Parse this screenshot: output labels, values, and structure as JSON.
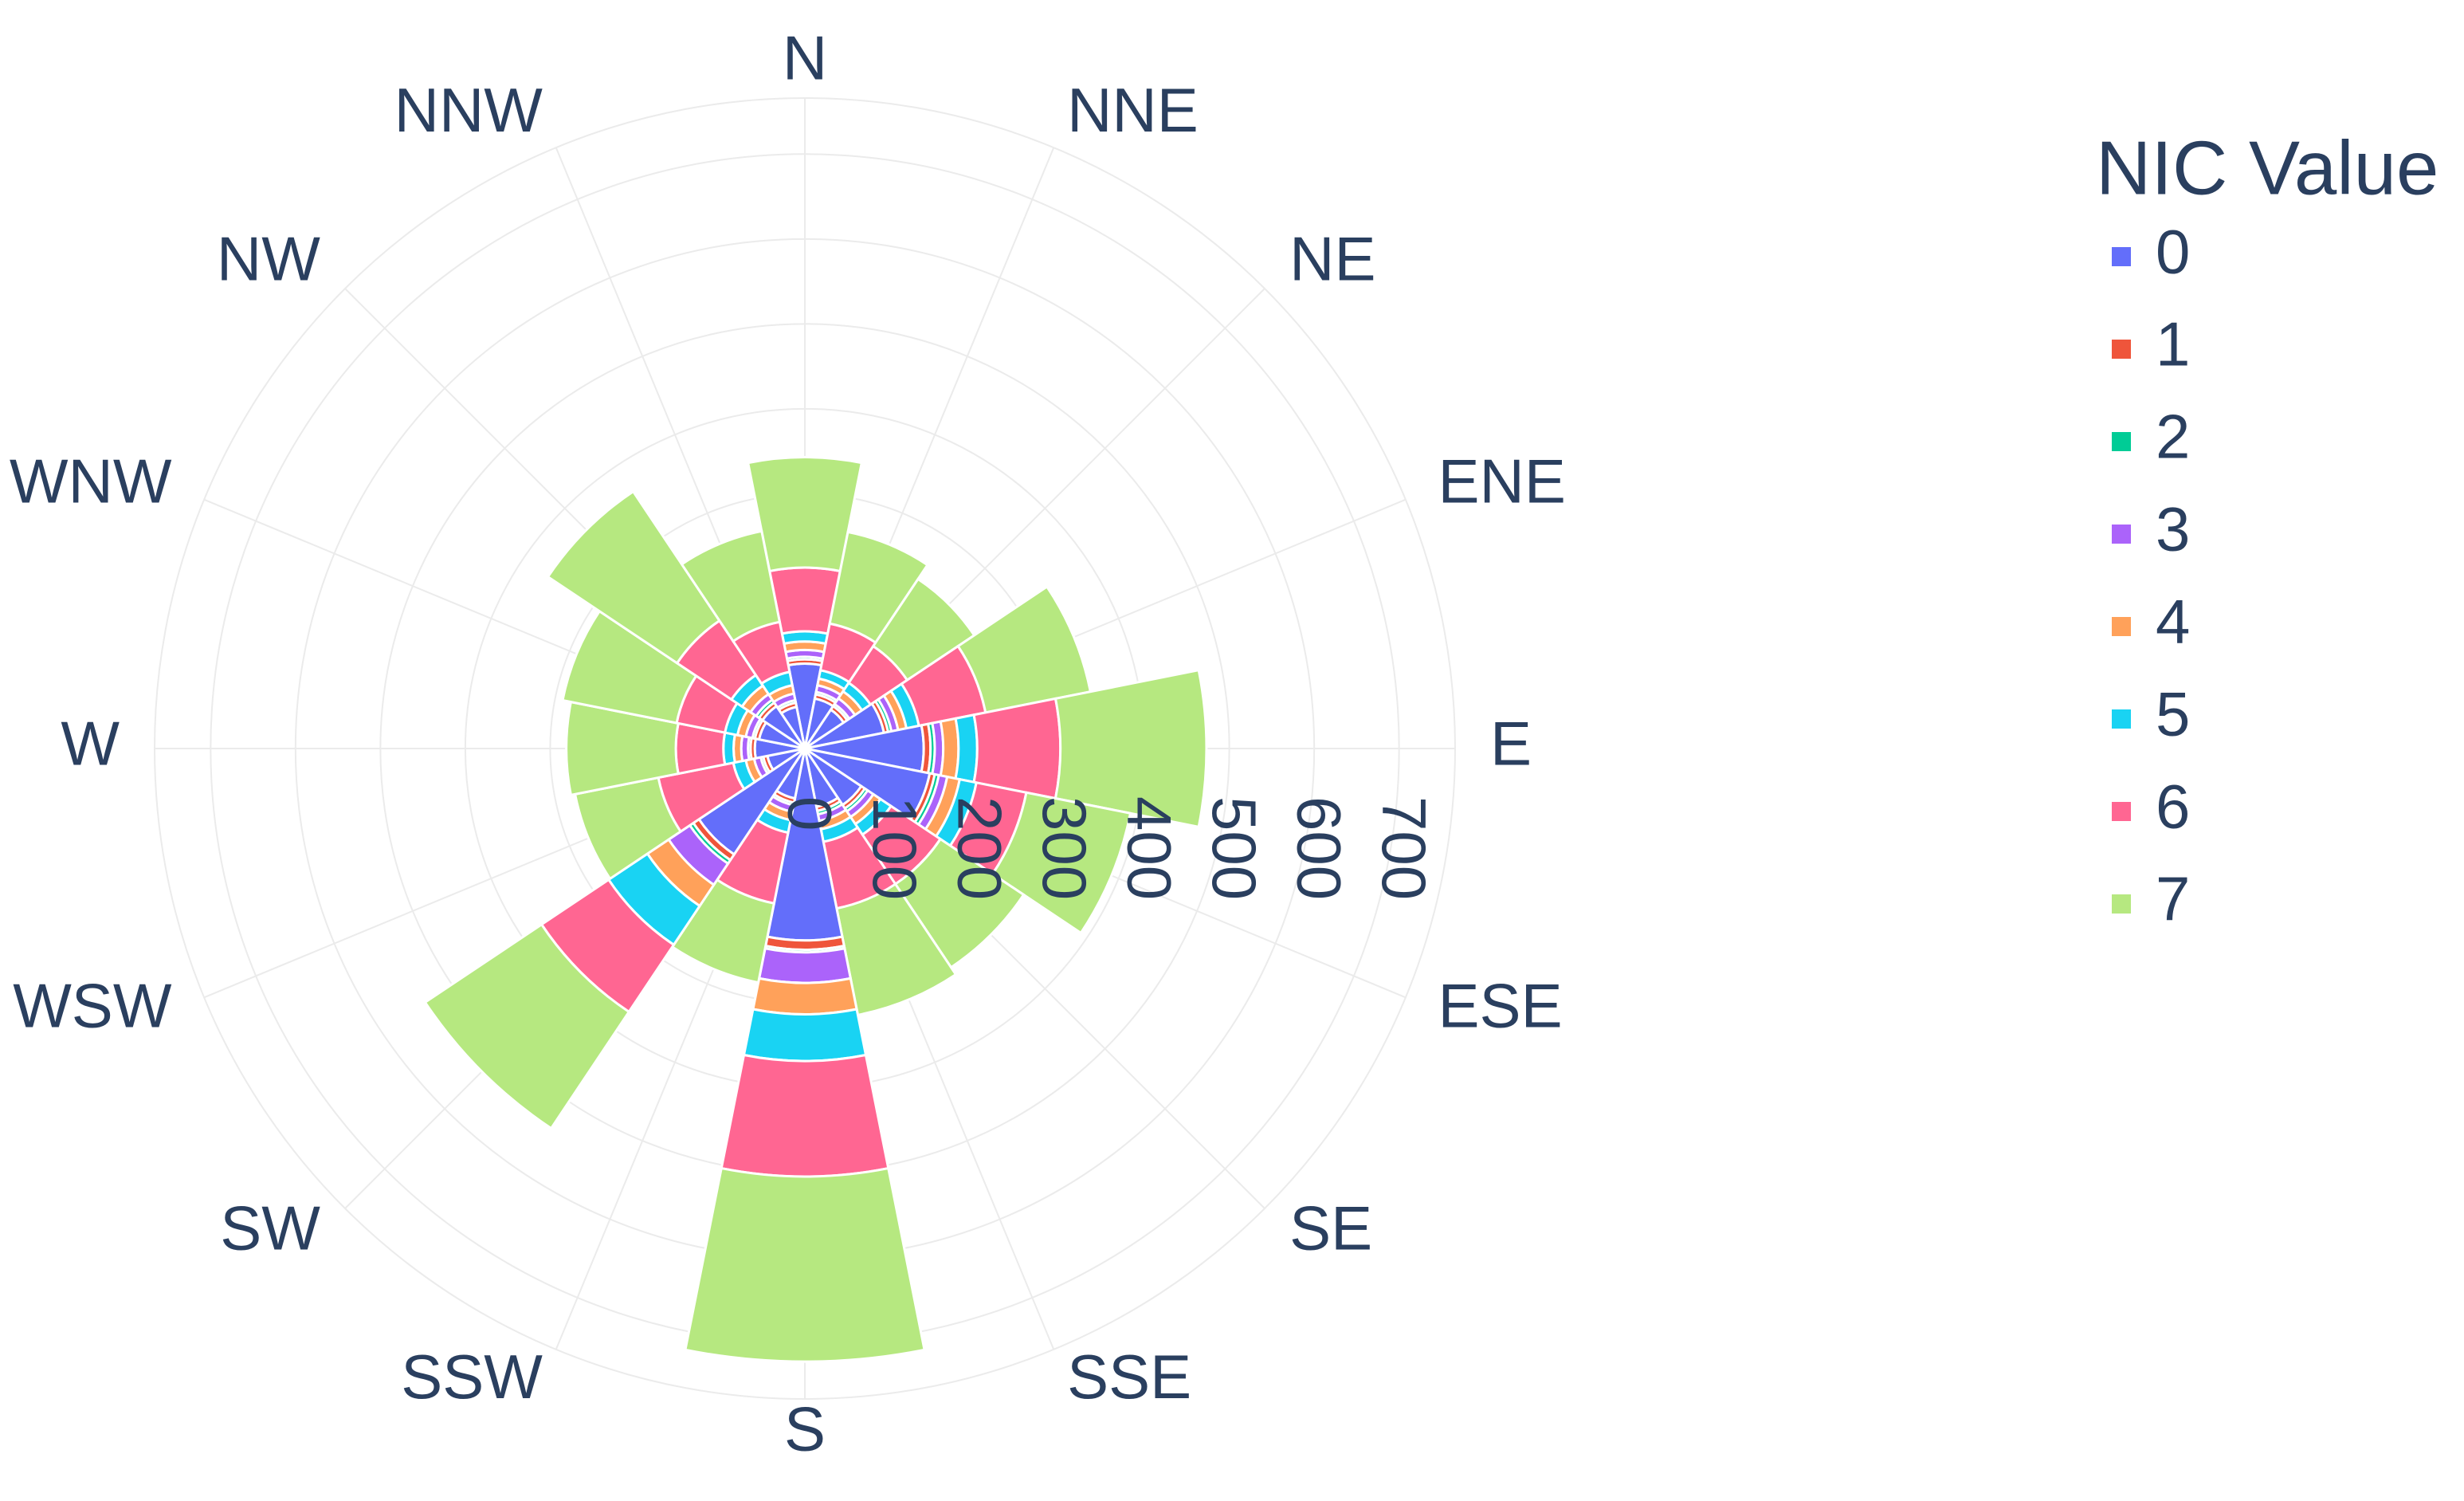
{
  "chart_data": {
    "type": "barpolar",
    "legend_title": "NIC Value",
    "categories": [
      "N",
      "NNE",
      "NE",
      "ENE",
      "E",
      "ESE",
      "SE",
      "SSE",
      "S",
      "SSW",
      "SW",
      "WSW",
      "W",
      "WNW",
      "NW",
      "NNW"
    ],
    "rlim": [
      0,
      766
    ],
    "rticks": [
      0,
      100,
      200,
      300,
      400,
      500,
      600,
      700
    ],
    "grid": true,
    "series": [
      {
        "name": "0",
        "color": "#636efa",
        "values": [
          100,
          60,
          55,
          95,
          140,
          150,
          80,
          70,
          226,
          60,
          150,
          45,
          59,
          55,
          60,
          50
        ]
      },
      {
        "name": "1",
        "color": "#EF553B",
        "values": [
          5,
          5,
          5,
          5,
          8,
          6,
          5,
          5,
          11,
          5,
          8,
          5,
          5,
          5,
          5,
          5
        ]
      },
      {
        "name": "2",
        "color": "#00cc96",
        "values": [
          3,
          3,
          3,
          4,
          5,
          5,
          4,
          4,
          3,
          3,
          5,
          3,
          3,
          3,
          4,
          3
        ]
      },
      {
        "name": "3",
        "color": "#ab63fa",
        "values": [
          8,
          8,
          8,
          8,
          10,
          10,
          8,
          8,
          36,
          8,
          30,
          8,
          8,
          8,
          8,
          8
        ]
      },
      {
        "name": "4",
        "color": "#FFA15A",
        "values": [
          10,
          8,
          10,
          10,
          18,
          15,
          10,
          10,
          37,
          10,
          30,
          10,
          9,
          10,
          12,
          10
        ]
      },
      {
        "name": "5",
        "color": "#19d3f3",
        "values": [
          12,
          10,
          12,
          15,
          22,
          20,
          15,
          15,
          55,
          15,
          55,
          15,
          12,
          15,
          15,
          16
        ]
      },
      {
        "name": "6",
        "color": "#FF6692",
        "values": [
          75,
          56,
          52,
          80,
          98,
          60,
          70,
          80,
          136,
          85,
          95,
          90,
          56,
          58,
          77,
          60
        ]
      },
      {
        "name": "7",
        "color": "#B6E880",
        "values": [
          130,
          110,
          95,
          126,
          172,
          125,
          118,
          128,
          218,
          95,
          165,
          100,
          129,
          137,
          183,
          109
        ]
      }
    ]
  }
}
